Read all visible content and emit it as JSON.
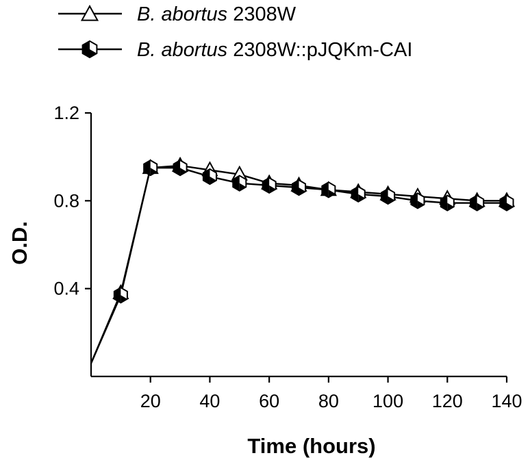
{
  "chart_data": {
    "type": "line",
    "title": "",
    "xlabel": "Time (hours)",
    "ylabel": "O.D.",
    "xlim": [
      0,
      140
    ],
    "ylim": [
      0,
      1.2
    ],
    "xticks": [
      20,
      40,
      60,
      80,
      100,
      120,
      140
    ],
    "xtick_labels": [
      "20",
      "40",
      "60",
      "80",
      "100",
      "120",
      "140"
    ],
    "yticks": [
      0.4,
      0.8,
      1.2
    ],
    "ytick_labels": [
      "0.4",
      "0.8",
      "1.2"
    ],
    "grid": false,
    "legend_position": "top-left",
    "series": [
      {
        "name": "B. abortus 2308W",
        "name_italic": "B. abortus",
        "name_rest": " 2308W",
        "marker": "open-triangle",
        "color": "#000000",
        "x": [
          0,
          10,
          20,
          30,
          40,
          50,
          60,
          70,
          80,
          90,
          100,
          110,
          120,
          130,
          140
        ],
        "y": [
          0.06,
          0.38,
          0.95,
          0.96,
          0.94,
          0.92,
          0.88,
          0.87,
          0.85,
          0.84,
          0.83,
          0.82,
          0.81,
          0.8,
          0.8
        ]
      },
      {
        "name": "B. abortus 2308W::pJQKm-CAI",
        "name_italic": "B. abortus",
        "name_rest": " 2308W::pJQKm-CAI",
        "marker": "half-filled-hexagon",
        "color": "#000000",
        "x": [
          0,
          10,
          20,
          30,
          40,
          50,
          60,
          70,
          80,
          90,
          100,
          110,
          120,
          130,
          140
        ],
        "y": [
          0.06,
          0.37,
          0.95,
          0.95,
          0.91,
          0.88,
          0.87,
          0.86,
          0.85,
          0.83,
          0.82,
          0.8,
          0.79,
          0.79,
          0.79
        ]
      }
    ]
  }
}
